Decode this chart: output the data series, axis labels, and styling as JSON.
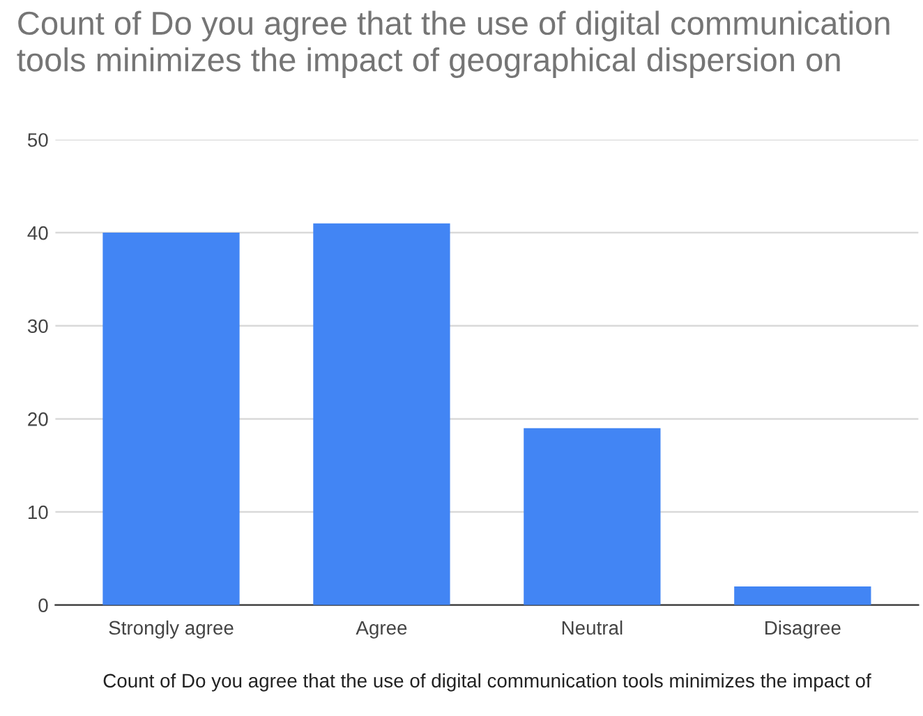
{
  "chart_data": {
    "type": "bar",
    "title": "Count of Do you agree that the use of digital communication tools minimizes the impact of geographical dispersion on",
    "xlabel": "Count of Do you agree that the use of digital communication tools minimizes the impact of",
    "categories": [
      "Strongly agree",
      "Agree",
      "Neutral",
      "Disagree"
    ],
    "values": [
      40,
      41,
      19,
      2
    ],
    "color": "#4285f4",
    "ylim": [
      0,
      50
    ],
    "yticks": [
      0,
      10,
      20,
      30,
      40,
      50
    ],
    "grid": "y",
    "legend": false
  }
}
